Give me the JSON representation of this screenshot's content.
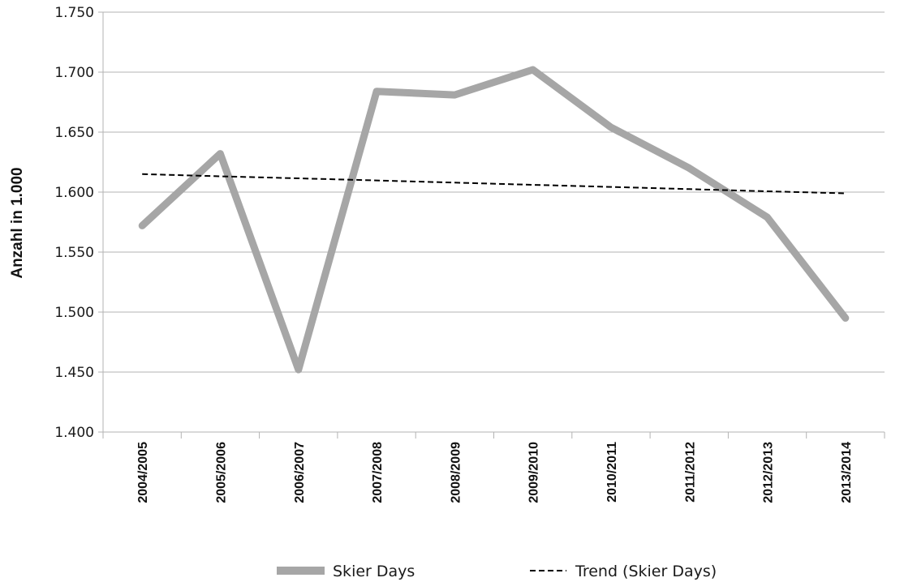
{
  "chart_data": {
    "type": "line",
    "title": "",
    "xlabel": "",
    "ylabel": "Anzahl in 1.000",
    "categories": [
      "2004/2005",
      "2005/2006",
      "2006/2007",
      "2007/2008",
      "2008/2009",
      "2009/2010",
      "2010/2011",
      "2011/2012",
      "2012/2013",
      "2013/2014"
    ],
    "series": [
      {
        "name": "Skier Days",
        "values": [
          1572,
          1632,
          1452,
          1684,
          1681,
          1702,
          1654,
          1620,
          1579,
          1495
        ],
        "color": "#a6a6a6",
        "style": "solid"
      },
      {
        "name": "Trend (Skier Days)",
        "values": [
          1615,
          1613.2,
          1611.5,
          1609.7,
          1607.9,
          1606.1,
          1604.3,
          1602.5,
          1600.7,
          1599
        ],
        "color": "#000000",
        "style": "dashed"
      }
    ],
    "ylim": [
      1400,
      1750
    ],
    "yticks": [
      1400,
      1450,
      1500,
      1550,
      1600,
      1650,
      1700,
      1750
    ],
    "ytick_labels": [
      "1.400",
      "1.450",
      "1.500",
      "1.550",
      "1.600",
      "1.650",
      "1.700",
      "1.750"
    ],
    "grid": true,
    "legend_position": "bottom"
  }
}
